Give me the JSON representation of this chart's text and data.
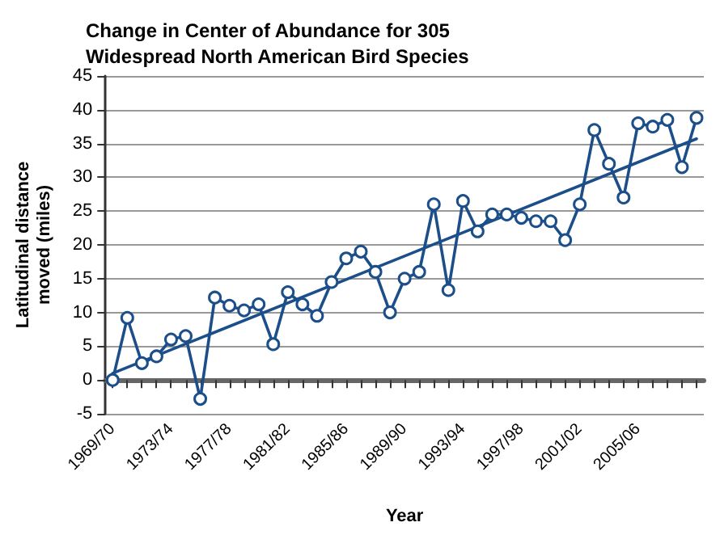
{
  "chart_data": {
    "type": "line",
    "title": "Change in Center of Abundance for 305\nWidespread North American Bird Species",
    "xlabel": "Year",
    "ylabel": "Latitudinal distance\nmoved (miles)",
    "categories": [
      "1969/70",
      null,
      null,
      null,
      "1973/74",
      null,
      null,
      null,
      "1977/78",
      null,
      null,
      null,
      "1981/82",
      null,
      null,
      null,
      "1985/86",
      null,
      null,
      null,
      "1989/90",
      null,
      null,
      null,
      "1993/94",
      null,
      null,
      null,
      "1997/98",
      null,
      null,
      null,
      "2001/02",
      null,
      null,
      null,
      "2005/06",
      null,
      null,
      null,
      null
    ],
    "series": [
      {
        "color": "#1c4f8a",
        "marker": "circle",
        "values": [
          0,
          9.2,
          2.5,
          3.5,
          6,
          6.5,
          -2.8,
          12.2,
          11,
          10.3,
          11.2,
          5.3,
          13,
          11.2,
          9.5,
          14.5,
          18,
          19,
          16,
          10,
          15,
          16,
          26,
          13.3,
          26.5,
          22,
          24.5,
          24.5,
          24,
          23.5,
          23.5,
          20.7,
          26,
          37,
          32,
          27,
          38,
          37.5,
          38.5,
          31.5,
          38.8
        ]
      },
      {
        "color": "#1c4f8a",
        "marker": "none",
        "values": [
          1,
          null,
          null,
          null,
          null,
          null,
          null,
          null,
          null,
          null,
          null,
          null,
          null,
          null,
          null,
          null,
          null,
          null,
          null,
          null,
          null,
          null,
          null,
          null,
          null,
          null,
          null,
          null,
          null,
          null,
          null,
          null,
          null,
          null,
          null,
          null,
          null,
          null,
          null,
          null,
          35.7
        ]
      }
    ],
    "ylim": [
      -5,
      45
    ],
    "yticks": [
      -5,
      0,
      5,
      10,
      15,
      20,
      25,
      30,
      35,
      40,
      45
    ],
    "grid": "y"
  }
}
